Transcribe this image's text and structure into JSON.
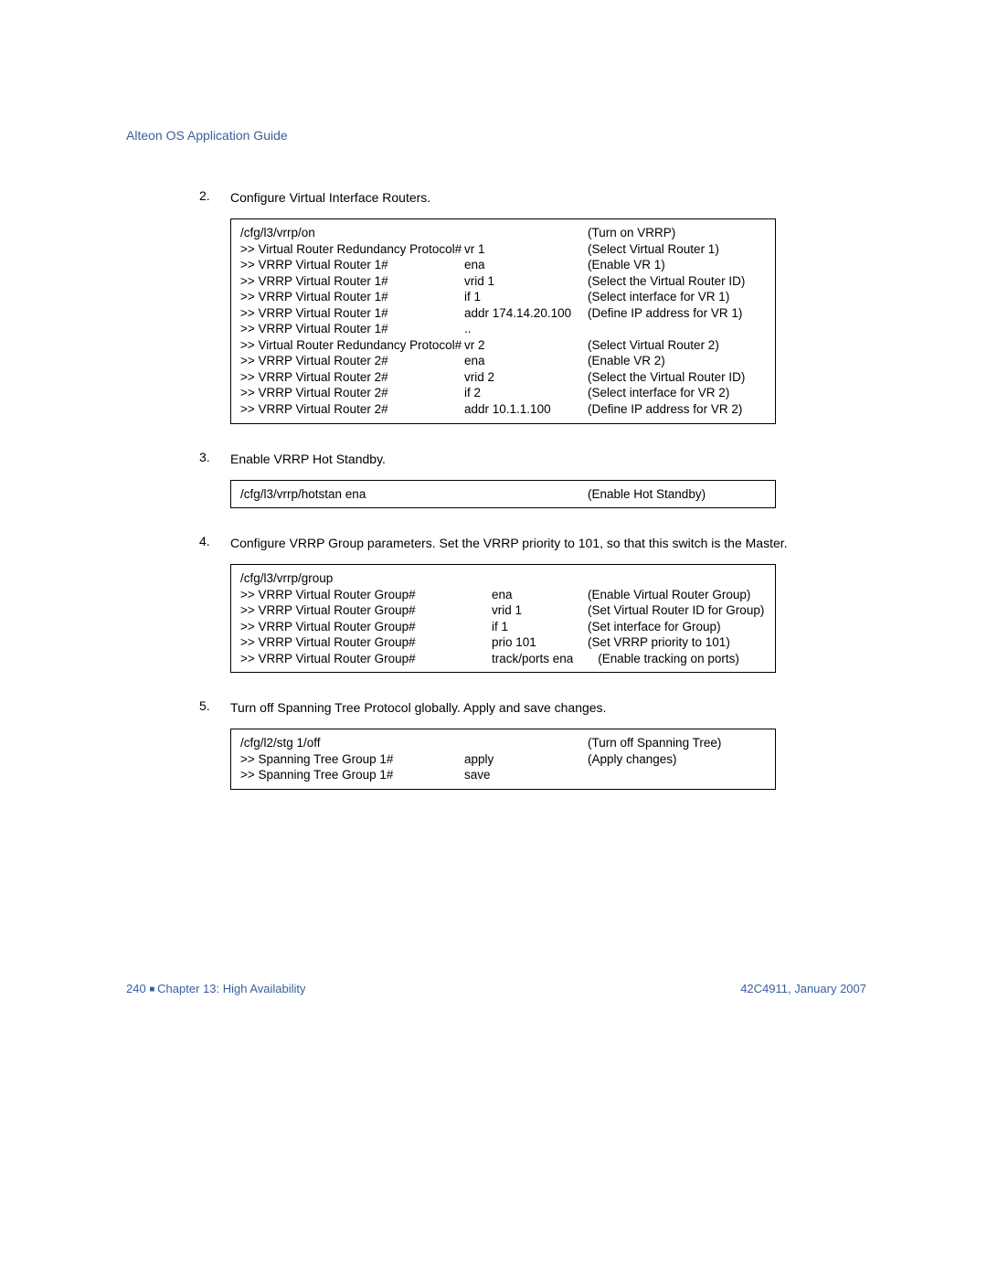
{
  "header": {
    "title": "Alteon OS Application Guide"
  },
  "steps": [
    {
      "num": "2.",
      "text": "Configure Virtual Interface Routers."
    },
    {
      "num": "3.",
      "text": "Enable VRRP Hot Standby."
    },
    {
      "num": "4.",
      "text": "Configure VRRP Group parameters. Set the VRRP priority to 101, so that this switch is the Master."
    },
    {
      "num": "5.",
      "text": "Turn off Spanning Tree Protocol globally. Apply and save changes."
    }
  ],
  "box1": [
    {
      "p": "/cfg/l3/vrrp/on",
      "c": "",
      "m": "(Turn on VRRP)"
    },
    {
      "p": ">> Virtual Router Redundancy Protocol#",
      "c": "vr 1",
      "m": "(Select Virtual Router 1)"
    },
    {
      "p": ">> VRRP Virtual Router 1#",
      "c": "ena",
      "m": "(Enable VR 1)"
    },
    {
      "p": ">> VRRP Virtual Router 1#",
      "c": "vrid 1",
      "m": "(Select the Virtual Router ID)"
    },
    {
      "p": ">> VRRP Virtual Router 1#",
      "c": "if 1",
      "m": "(Select interface for VR 1)"
    },
    {
      "p": ">> VRRP Virtual Router 1#",
      "c": "addr 174.14.20.100",
      "m": "(Define IP address for VR 1)"
    },
    {
      "p": ">> VRRP Virtual Router 1#",
      "c": "..",
      "m": ""
    },
    {
      "p": ">> Virtual Router Redundancy Protocol#",
      "c": "vr 2",
      "m": "(Select Virtual Router 2)"
    },
    {
      "p": ">> VRRP Virtual Router 2#",
      "c": "ena",
      "m": "(Enable VR 2)"
    },
    {
      "p": ">> VRRP Virtual Router 2#",
      "c": "vrid 2",
      "m": "(Select the Virtual Router ID)"
    },
    {
      "p": ">> VRRP Virtual Router 2#",
      "c": "if 2",
      "m": "(Select interface for VR 2)"
    },
    {
      "p": ">> VRRP Virtual Router 2#",
      "c": "addr 10.1.1.100",
      "m": "(Define IP address for VR 2)"
    }
  ],
  "box2": [
    {
      "p": "/cfg/l3/vrrp/hotstan ena",
      "c": "",
      "m": "(Enable Hot Standby)"
    }
  ],
  "box3": [
    {
      "p": "/cfg/l3/vrrp/group",
      "c": "",
      "m": ""
    },
    {
      "p": ">> VRRP Virtual Router Group#",
      "c": "ena",
      "m": "(Enable Virtual Router Group)"
    },
    {
      "p": ">> VRRP Virtual Router Group#",
      "c": "vrid 1",
      "m": "(Set Virtual Router ID for Group)"
    },
    {
      "p": ">> VRRP Virtual Router Group#",
      "c": "if 1",
      "m": "(Set interface for Group)"
    },
    {
      "p": ">> VRRP Virtual Router Group#",
      "c": "prio 101",
      "m": "(Set VRRP priority to 101)"
    },
    {
      "p": ">> VRRP Virtual Router Group#",
      "c": "track/ports ena",
      "m": "   (Enable tracking on ports)"
    }
  ],
  "box4": [
    {
      "p": "/cfg/l2/stg 1/off",
      "c": "",
      "m": "(Turn off Spanning Tree)"
    },
    {
      "p": ">> Spanning Tree Group 1#",
      "c": "apply",
      "m": "(Apply changes)"
    },
    {
      "p": ">> Spanning Tree Group 1#",
      "c": "save",
      "m": ""
    }
  ],
  "footer": {
    "page_num": "240",
    "chapter": "Chapter 13:  High Availability",
    "docref": "42C4911, January 2007"
  }
}
